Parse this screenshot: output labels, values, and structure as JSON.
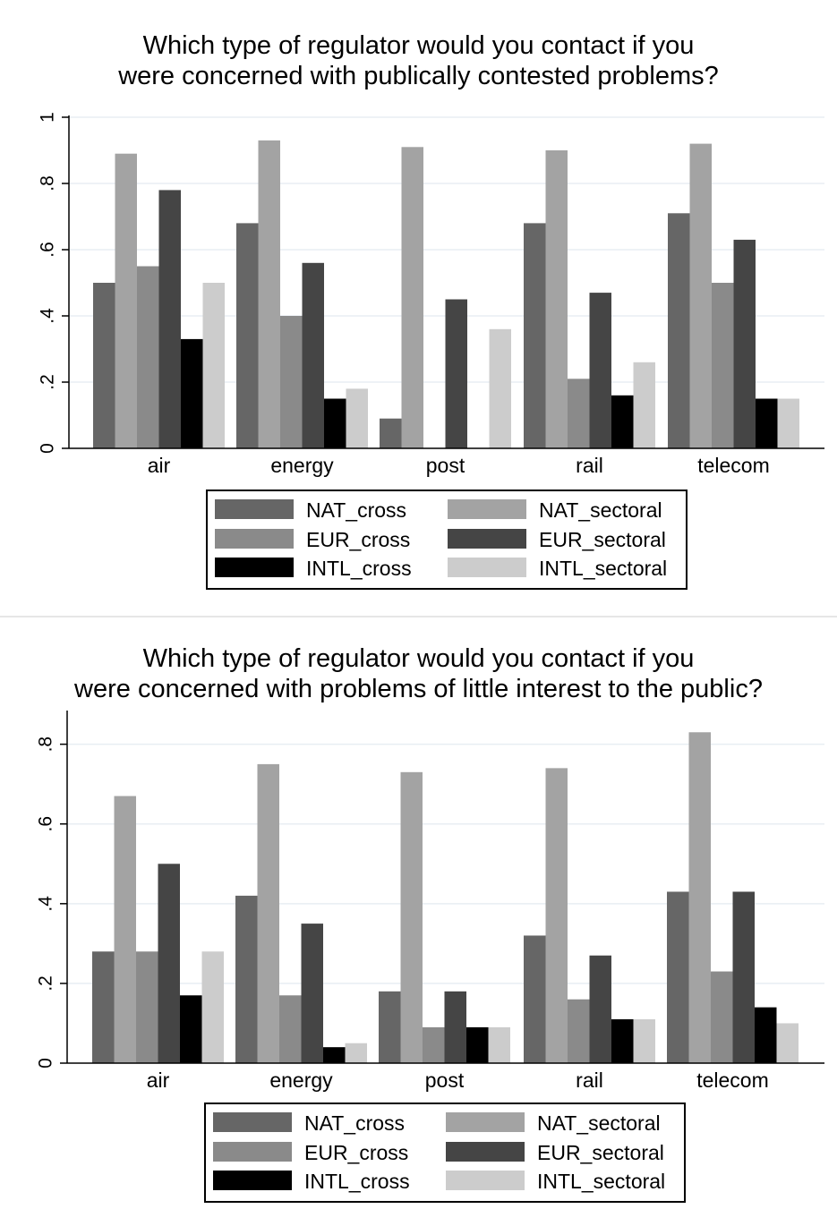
{
  "chart_data": [
    {
      "type": "bar",
      "title": [
        "Which type of regulator would you contact if you",
        "were concerned with publically contested problems?"
      ],
      "xlabel": "",
      "ylabel": "",
      "ylim": [
        0,
        1
      ],
      "yticks": [
        0,
        0.2,
        0.4,
        0.6,
        0.8,
        1
      ],
      "ytick_labels": [
        "0",
        ".2",
        ".4",
        ".6",
        ".8",
        "1"
      ],
      "grid": true,
      "legend_position": "bottom",
      "categories": [
        "air",
        "energy",
        "post",
        "rail",
        "telecom"
      ],
      "series": [
        {
          "name": "NAT_cross",
          "color": "#666666",
          "values": [
            0.5,
            0.68,
            0.09,
            0.68,
            0.71
          ]
        },
        {
          "name": "NAT_sectoral",
          "color": "#a3a3a3",
          "values": [
            0.89,
            0.93,
            0.91,
            0.9,
            0.92
          ]
        },
        {
          "name": "EUR_cross",
          "color": "#8a8a8a",
          "values": [
            0.55,
            0.4,
            0.0,
            0.21,
            0.5
          ]
        },
        {
          "name": "EUR_sectoral",
          "color": "#454545",
          "values": [
            0.78,
            0.56,
            0.45,
            0.47,
            0.63
          ]
        },
        {
          "name": "INTL_cross",
          "color": "#000000",
          "values": [
            0.33,
            0.15,
            0.0,
            0.16,
            0.15
          ]
        },
        {
          "name": "INTL_sectoral",
          "color": "#cccccc",
          "values": [
            0.5,
            0.18,
            0.36,
            0.26,
            0.15
          ]
        }
      ]
    },
    {
      "type": "bar",
      "title": [
        "Which type of regulator would you contact if you",
        "were concerned with problems of little interest to the public?"
      ],
      "xlabel": "",
      "ylabel": "",
      "ylim": [
        0,
        0.88
      ],
      "yticks": [
        0,
        0.2,
        0.4,
        0.6,
        0.8
      ],
      "ytick_labels": [
        "0",
        ".2",
        ".4",
        ".6",
        ".8"
      ],
      "grid": true,
      "legend_position": "bottom",
      "categories": [
        "air",
        "energy",
        "post",
        "rail",
        "telecom"
      ],
      "series": [
        {
          "name": "NAT_cross",
          "color": "#666666",
          "values": [
            0.28,
            0.42,
            0.18,
            0.32,
            0.43
          ]
        },
        {
          "name": "NAT_sectoral",
          "color": "#a3a3a3",
          "values": [
            0.67,
            0.75,
            0.73,
            0.74,
            0.83
          ]
        },
        {
          "name": "EUR_cross",
          "color": "#8a8a8a",
          "values": [
            0.28,
            0.17,
            0.09,
            0.16,
            0.23
          ]
        },
        {
          "name": "EUR_sectoral",
          "color": "#454545",
          "values": [
            0.5,
            0.35,
            0.18,
            0.27,
            0.43
          ]
        },
        {
          "name": "INTL_cross",
          "color": "#000000",
          "values": [
            0.17,
            0.04,
            0.09,
            0.11,
            0.14
          ]
        },
        {
          "name": "INTL_sectoral",
          "color": "#cccccc",
          "values": [
            0.28,
            0.05,
            0.09,
            0.11,
            0.1
          ]
        }
      ]
    }
  ]
}
